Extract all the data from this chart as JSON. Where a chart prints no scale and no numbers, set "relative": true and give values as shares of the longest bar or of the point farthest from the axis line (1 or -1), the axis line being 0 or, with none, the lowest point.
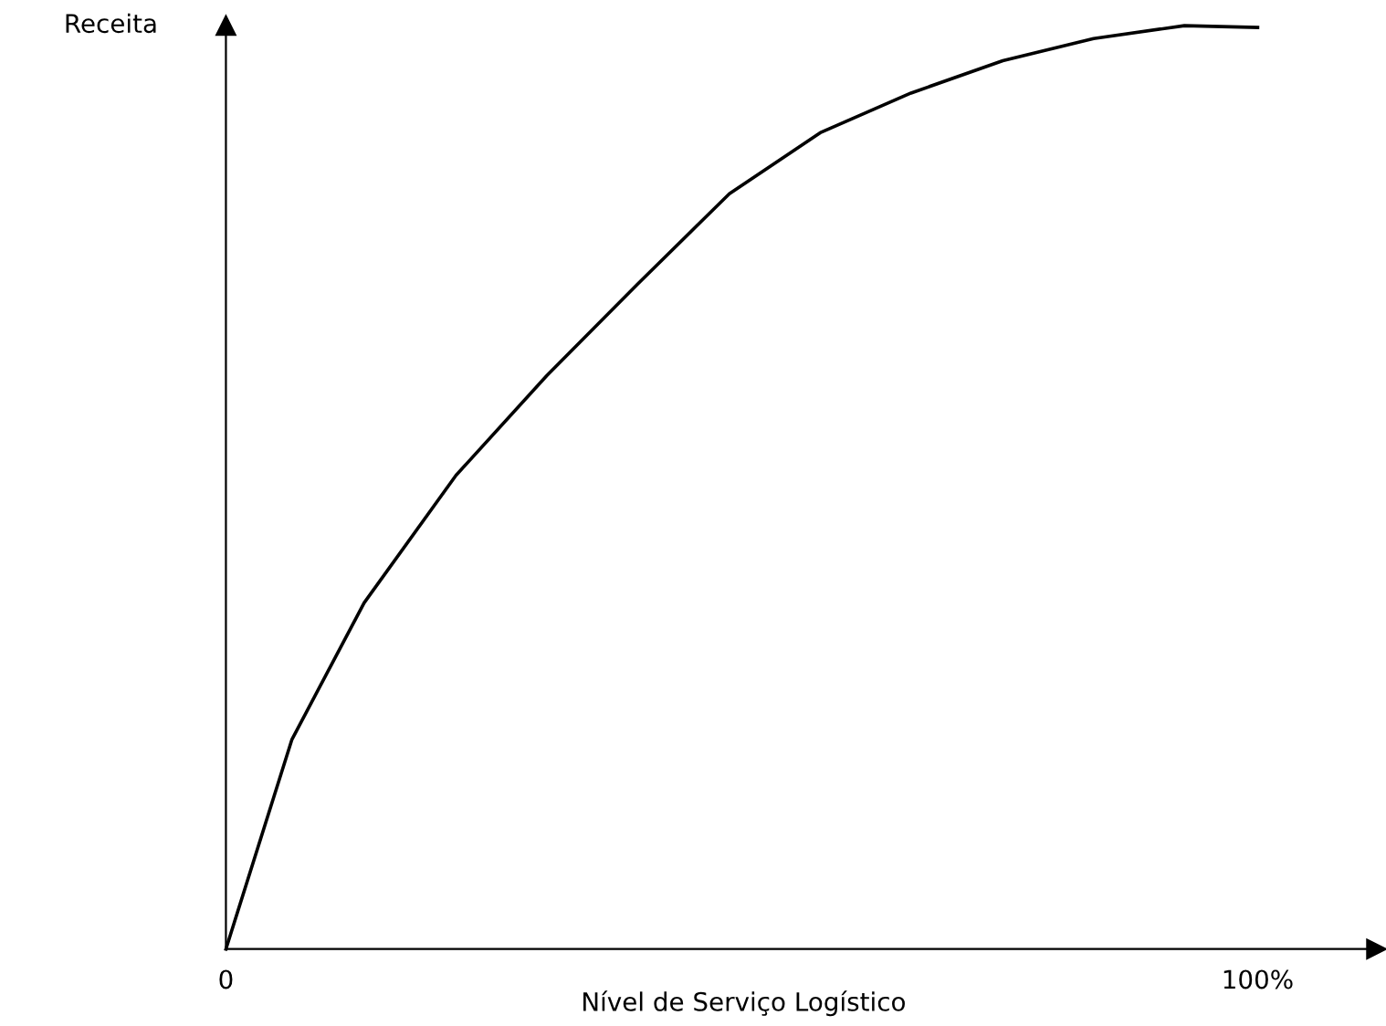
{
  "chart_data": {
    "type": "line",
    "xlabel": "Nível de Serviço Logístico",
    "ylabel": "Receita",
    "relative": true,
    "x": [
      0,
      6.4,
      13.4,
      22.3,
      31.1,
      39.9,
      48.8,
      57.6,
      66.4,
      75.3,
      84.1,
      92.9,
      100
    ],
    "series": [
      {
        "color": "#000000",
        "values": [
          0,
          0.227,
          0.375,
          0.513,
          0.621,
          0.72,
          0.818,
          0.884,
          0.927,
          0.962,
          0.986,
          1.0,
          0.998
        ]
      }
    ],
    "xlim": [
      0,
      111.5
    ],
    "xticks": [
      {
        "value": 0,
        "label": "0"
      },
      {
        "value": 100,
        "label": "100%"
      }
    ],
    "tick_labels": "x",
    "grid": false,
    "legend": false,
    "marker": "none",
    "line_style": "solid"
  }
}
